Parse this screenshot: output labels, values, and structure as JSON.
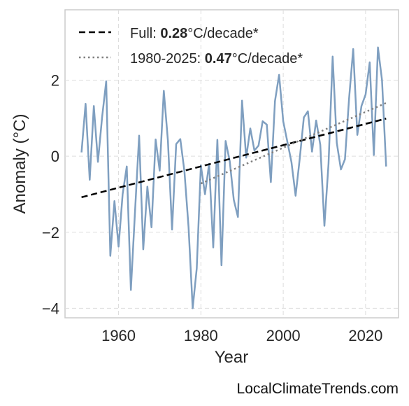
{
  "chart_data": {
    "type": "line",
    "xlabel": "Year",
    "ylabel": "Anomaly (°C)",
    "xlim": [
      1947,
      2028
    ],
    "ylim": [
      -4.25,
      3.85
    ],
    "xticks": [
      1960,
      1980,
      2000,
      2020
    ],
    "yticks": [
      -4,
      -2,
      0,
      2
    ],
    "ytick_labels": [
      "−4",
      "−2",
      "0",
      "2"
    ],
    "grid": true,
    "legend_position": "top-left",
    "series": [
      {
        "style": "solid",
        "color": "#7f9fc0",
        "x": [
          1951,
          1952,
          1953,
          1954,
          1955,
          1956,
          1957,
          1958,
          1959,
          1960,
          1961,
          1962,
          1963,
          1964,
          1965,
          1966,
          1967,
          1968,
          1969,
          1970,
          1971,
          1972,
          1973,
          1974,
          1975,
          1976,
          1977,
          1978,
          1979,
          1980,
          1981,
          1982,
          1983,
          1984,
          1985,
          1986,
          1987,
          1988,
          1989,
          1990,
          1991,
          1992,
          1993,
          1994,
          1995,
          1996,
          1997,
          1998,
          1999,
          2000,
          2001,
          2002,
          2003,
          2004,
          2005,
          2006,
          2007,
          2008,
          2009,
          2010,
          2011,
          2012,
          2013,
          2014,
          2015,
          2016,
          2017,
          2018,
          2019,
          2020,
          2021,
          2022,
          2023,
          2024,
          2025
        ],
        "y": [
          0.1,
          1.38,
          -0.62,
          1.32,
          -0.15,
          1.02,
          1.97,
          -2.62,
          -1.18,
          -2.38,
          -1.0,
          -0.27,
          -3.52,
          -1.46,
          0.54,
          -2.45,
          -0.8,
          -1.87,
          0.44,
          -0.38,
          1.72,
          0.4,
          -1.93,
          0.32,
          0.45,
          -0.4,
          -1.87,
          -4.0,
          -2.95,
          -0.24,
          -1.0,
          -0.2,
          -2.4,
          0.43,
          -2.87,
          0.4,
          -0.13,
          -1.15,
          -1.6,
          1.46,
          -0.04,
          0.73,
          0.15,
          0.28,
          0.92,
          0.83,
          -0.68,
          1.45,
          2.14,
          0.92,
          0.38,
          -0.16,
          -1.04,
          -0.07,
          1.02,
          1.18,
          0.12,
          0.94,
          0.3,
          -1.83,
          -0.2,
          2.62,
          0.35,
          -0.35,
          -0.08,
          1.52,
          2.82,
          0.56,
          1.32,
          1.62,
          2.47,
          0.03,
          2.86,
          2.0,
          -0.27
        ]
      },
      {
        "name": "Full",
        "style": "dashed",
        "color": "#000000",
        "x": [
          1951,
          2025
        ],
        "y": [
          -1.08,
          0.99
        ]
      },
      {
        "name": "1980-2025",
        "style": "dotted",
        "color": "#808080",
        "x": [
          1980,
          2025
        ],
        "y": [
          -0.72,
          1.4
        ]
      }
    ],
    "legend": [
      {
        "prefix": "Full: ",
        "value": "0.28",
        "suffix": "°C/decade*"
      },
      {
        "prefix": "1980-2025: ",
        "value": "0.47",
        "suffix": "°C/decade*"
      }
    ]
  },
  "watermark": "LocalClimateTrends.com"
}
